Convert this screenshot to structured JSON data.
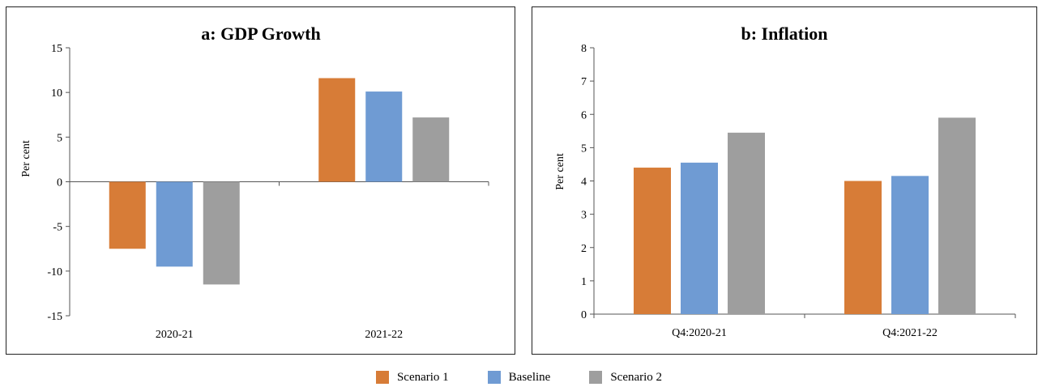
{
  "colors": {
    "scenario1": "#d77c37",
    "baseline": "#6f9bd3",
    "scenario2": "#9e9e9e"
  },
  "legend": [
    {
      "label": "Scenario 1",
      "color": "#d77c37"
    },
    {
      "label": "Baseline",
      "color": "#6f9bd3"
    },
    {
      "label": "Scenario 2",
      "color": "#9e9e9e"
    }
  ],
  "chart_data": [
    {
      "type": "bar",
      "title": "a: GDP Growth",
      "ylabel": "Per cent",
      "xlabel": "",
      "categories": [
        "2020-21",
        "2021-22"
      ],
      "ylim": [
        -15,
        15
      ],
      "yticks": [
        15,
        10,
        5,
        0,
        -5,
        -10,
        -15
      ],
      "ytick_labels": [
        "15",
        "10",
        "5",
        "0",
        "-5",
        "-10",
        "-15"
      ],
      "series": [
        {
          "name": "Scenario 1",
          "values": [
            -7.5,
            11.6
          ],
          "color": "#d77c37"
        },
        {
          "name": "Baseline",
          "values": [
            -9.5,
            10.1
          ],
          "color": "#6f9bd3"
        },
        {
          "name": "Scenario 2",
          "values": [
            -11.5,
            7.2
          ],
          "color": "#9e9e9e"
        }
      ]
    },
    {
      "type": "bar",
      "title": "b: Inflation",
      "ylabel": "Per cent",
      "xlabel": "",
      "categories": [
        "Q4:2020-21",
        "Q4:2021-22"
      ],
      "ylim": [
        0,
        8
      ],
      "yticks": [
        8,
        7,
        6,
        5,
        4,
        3,
        2,
        1,
        0
      ],
      "ytick_labels": [
        "8",
        "7",
        "6",
        "5",
        "4",
        "3",
        "2",
        "1",
        "0"
      ],
      "series": [
        {
          "name": "Scenario 1",
          "values": [
            4.4,
            4.0
          ],
          "color": "#d77c37"
        },
        {
          "name": "Baseline",
          "values": [
            4.55,
            4.15
          ],
          "color": "#6f9bd3"
        },
        {
          "name": "Scenario 2",
          "values": [
            5.45,
            5.9
          ],
          "color": "#9e9e9e"
        }
      ]
    }
  ]
}
